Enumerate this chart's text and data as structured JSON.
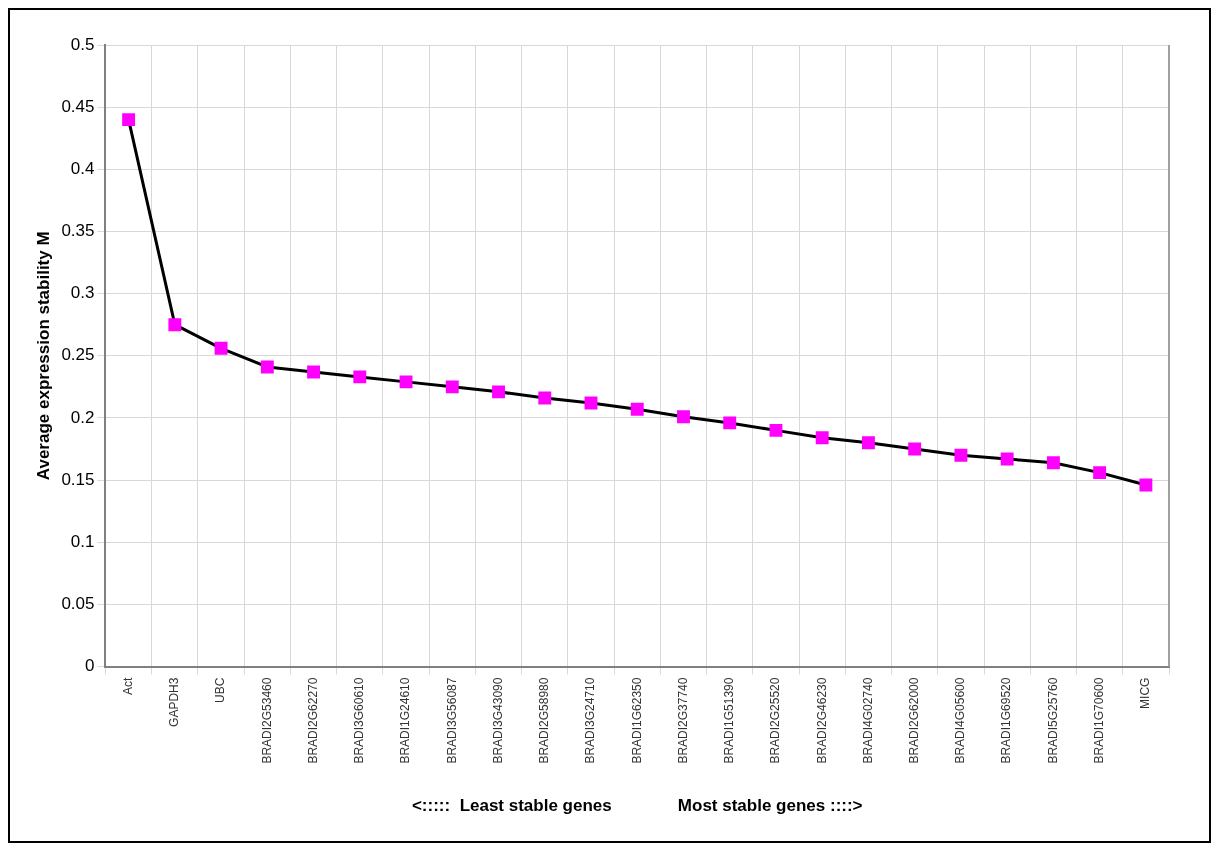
{
  "chart_data": {
    "type": "line",
    "ylabel": "Average expression stability M",
    "xlabel": "<:::::  Least stable genes              Most stable genes ::::>",
    "categories": [
      "Act",
      "GAPDH3",
      "UBC",
      "BRADI2G53460",
      "BRADI2G62270",
      "BRADI3G60610",
      "BRADI1G24610",
      "BRADI3G56087",
      "BRADI3G43090",
      "BRADI2G58980",
      "BRADI3G24710",
      "BRADI1G62350",
      "BRADI2G37740",
      "BRADI1G51390",
      "BRADI2G25520",
      "BRADI2G46230",
      "BRADI4G02740",
      "BRADI2G62000",
      "BRADI4G05600",
      "BRADI1G69520",
      "BRADI5G25760",
      "BRADI1G70600",
      "MICG"
    ],
    "series": [
      {
        "color": "#ff00ff",
        "values": [
          0.44,
          0.275,
          0.256,
          0.241,
          0.237,
          0.233,
          0.229,
          0.225,
          0.221,
          0.216,
          0.212,
          0.207,
          0.201,
          0.196,
          0.19,
          0.184,
          0.18,
          0.175,
          0.17,
          0.167,
          0.164,
          0.156,
          0.146
        ]
      }
    ],
    "ylim": [
      0,
      0.5
    ],
    "yticks": [
      0,
      0.05,
      0.1,
      0.15,
      0.2,
      0.25,
      0.3,
      0.35,
      0.4,
      0.45,
      0.5
    ],
    "grid": true,
    "legend": false,
    "marker": "square",
    "line_style": "solid"
  }
}
